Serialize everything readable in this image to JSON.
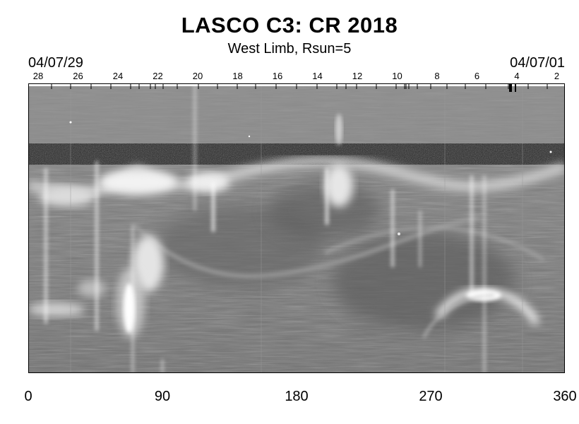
{
  "header": {
    "title": "LASCO C3: CR 2018",
    "subtitle": "West Limb, Rsun=5",
    "date_left": "04/07/29",
    "date_right": "04/07/01"
  },
  "day_labels": [
    "28",
    "26",
    "24",
    "22",
    "20",
    "18",
    "16",
    "14",
    "12",
    "10",
    "8",
    "6",
    "4",
    "2"
  ],
  "x_axis": {
    "labels": [
      "0",
      "90",
      "180",
      "270",
      "360"
    ],
    "min": 0,
    "max": 360
  },
  "image": {
    "description_colors": {
      "background": "#ffffff",
      "plot_mid_gray": "#7a7a7a",
      "noise_band": "#2a2a2a",
      "bright_streamer": "#f4f4f4"
    }
  }
}
